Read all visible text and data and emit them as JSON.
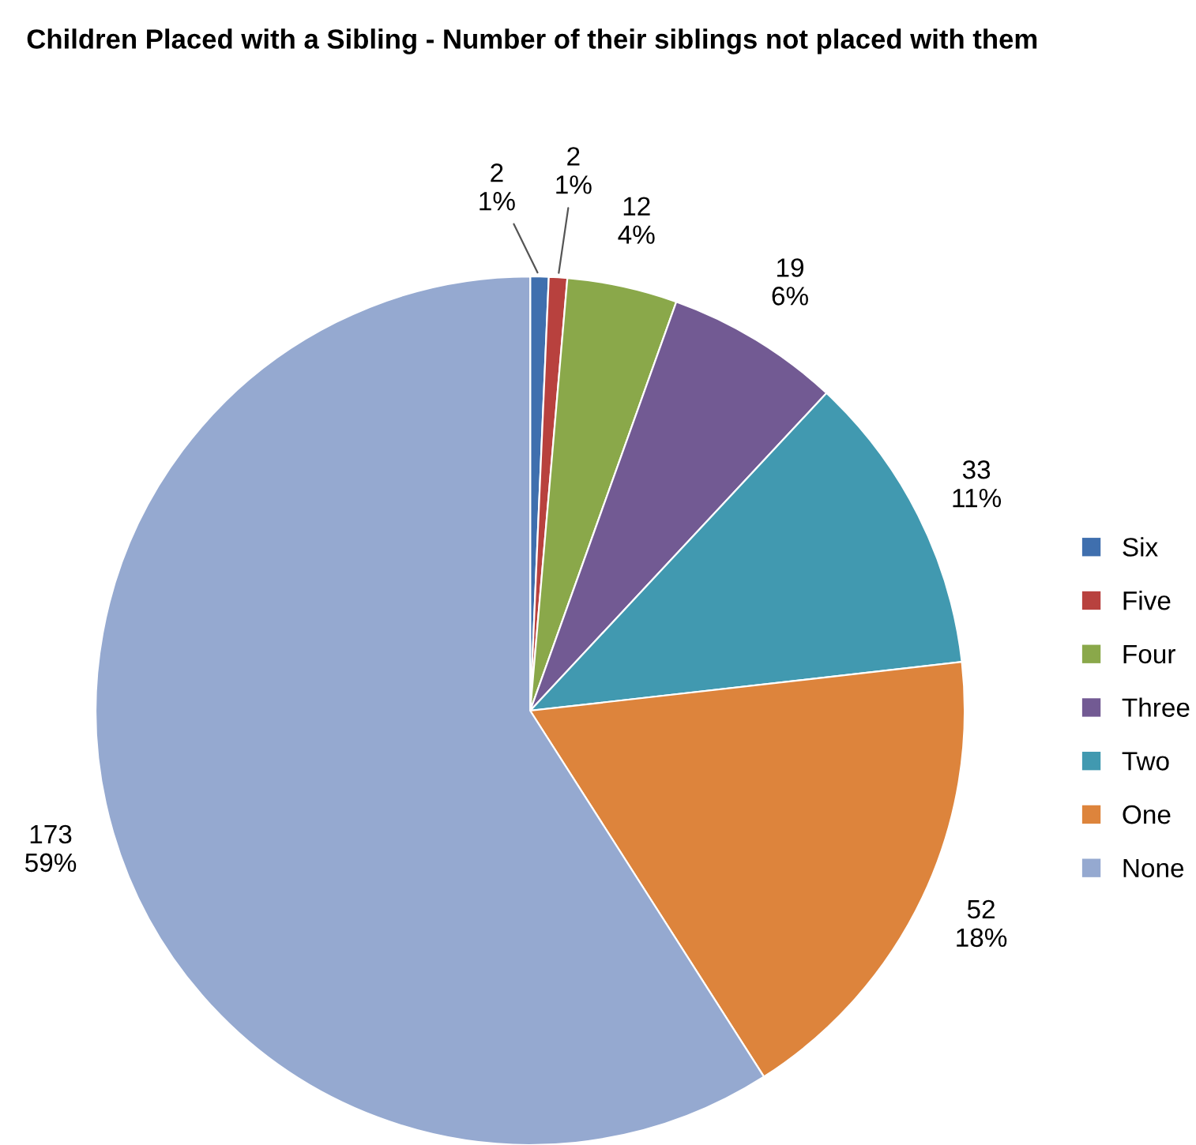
{
  "chart_data": {
    "type": "pie",
    "title": "Children Placed with a Sibling - Number of their siblings not placed with them",
    "categories": [
      "Six",
      "Five",
      "Four",
      "Three",
      "Two",
      "One",
      "None"
    ],
    "values": [
      2,
      2,
      12,
      19,
      33,
      52,
      173
    ],
    "value_labels": [
      "2\n1%",
      "2\n1%",
      "12\n4%",
      "19\n6%",
      "33\n11%",
      "52\n18%",
      "173\n59%"
    ],
    "colors": [
      "#3f6fae",
      "#b8413e",
      "#8aa84a",
      "#725a93",
      "#4199b0",
      "#dd843c",
      "#95a9d0"
    ],
    "legend": "right"
  }
}
